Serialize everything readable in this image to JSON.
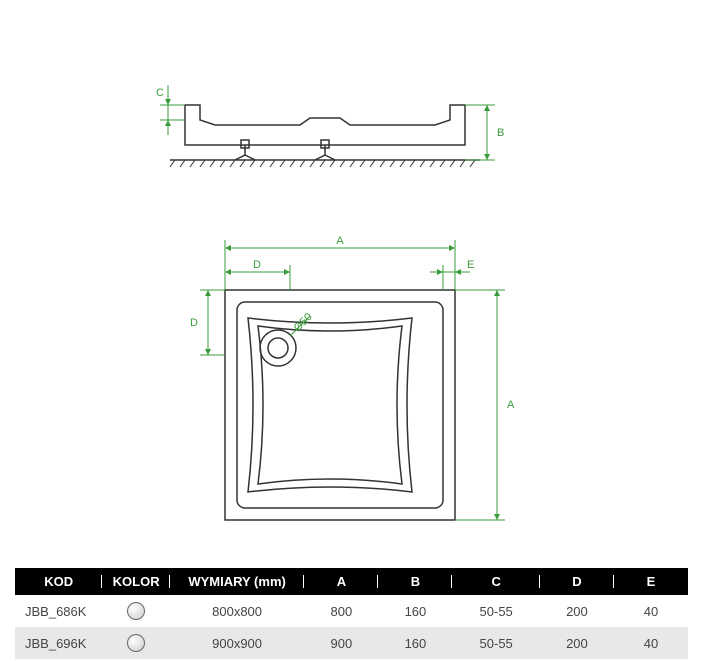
{
  "diagram": {
    "labels": {
      "A": "A",
      "B": "B",
      "C": "C",
      "D": "D",
      "E": "E",
      "drain": "Ø50"
    },
    "colors": {
      "dim": "#3a9b3a",
      "part": "#333333",
      "bg": "#ffffff"
    },
    "stroke_widths": {
      "dim": 1,
      "part": 1.5
    }
  },
  "table": {
    "headers": [
      "KOD",
      "KOLOR",
      "WYMIARY (mm)",
      "A",
      "B",
      "C",
      "D",
      "E"
    ],
    "col_widths_pct": [
      13,
      10,
      20,
      11,
      11,
      13,
      11,
      11
    ],
    "rows": [
      {
        "kod": "JBB_686K",
        "wymiary": "800x800",
        "A": "800",
        "B": "160",
        "C": "50-55",
        "D": "200",
        "E": "40"
      },
      {
        "kod": "JBB_696K",
        "wymiary": "900x900",
        "A": "900",
        "B": "160",
        "C": "50-55",
        "D": "200",
        "E": "40"
      }
    ]
  }
}
